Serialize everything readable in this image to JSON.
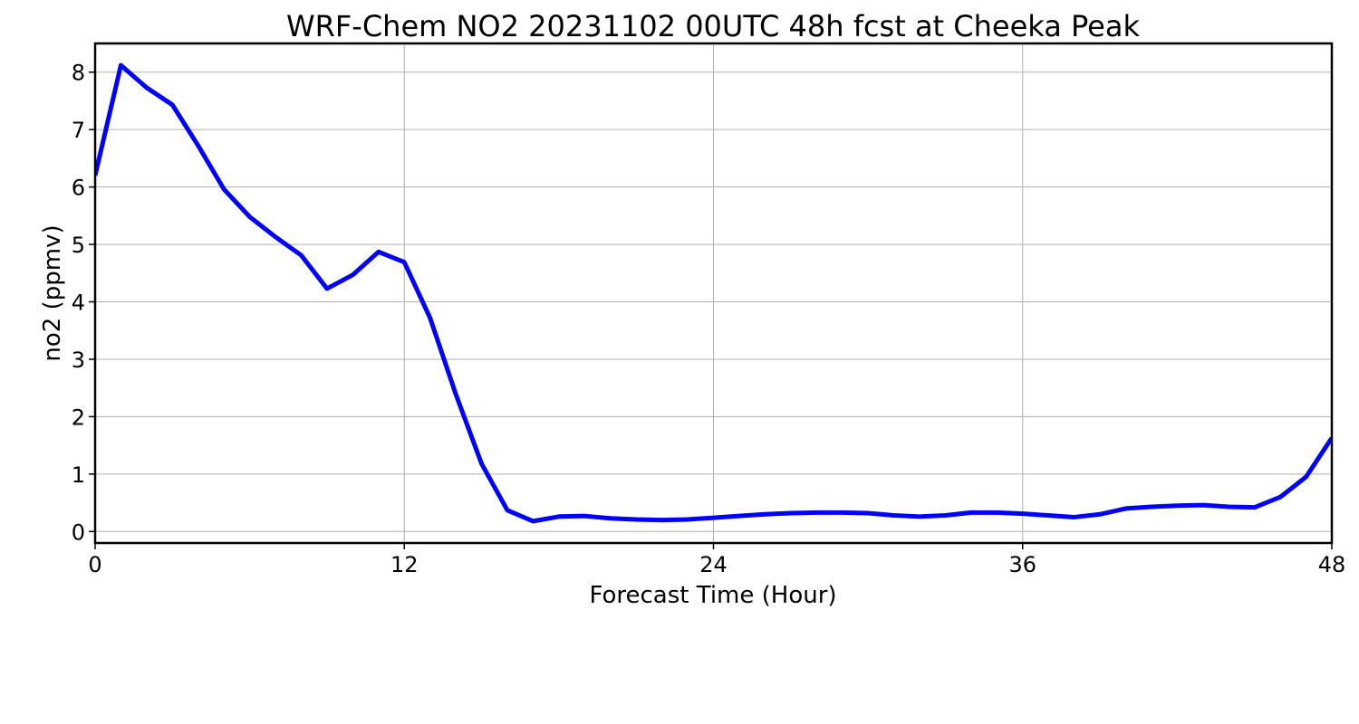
{
  "chart_data": {
    "type": "line",
    "title": "WRF-Chem NO2  20231102 00UTC 48h fcst at Cheeka Peak",
    "xlabel": "Forecast Time (Hour)",
    "ylabel": "no2  (ppmv)",
    "xlim": [
      0,
      48
    ],
    "ylim": [
      -0.2,
      8.5
    ],
    "xticks": [
      0,
      12,
      24,
      36,
      48
    ],
    "yticks": [
      0,
      1,
      2,
      3,
      4,
      5,
      6,
      7,
      8
    ],
    "grid": true,
    "series": [
      {
        "color": "#0000ff",
        "x": [
          0,
          1,
          2,
          3,
          4,
          5,
          6,
          7,
          8,
          9,
          10,
          11,
          12,
          13,
          14,
          15,
          16,
          17,
          18,
          19,
          20,
          21,
          22,
          23,
          24,
          25,
          26,
          27,
          28,
          29,
          30,
          31,
          32,
          33,
          34,
          35,
          36,
          37,
          38,
          39,
          40,
          41,
          42,
          43,
          44,
          45,
          46,
          47,
          48
        ],
        "y": [
          6.2,
          8.12,
          7.73,
          7.43,
          6.72,
          5.96,
          5.48,
          5.13,
          4.81,
          4.23,
          4.47,
          4.87,
          4.69,
          3.72,
          2.39,
          1.18,
          0.37,
          0.18,
          0.26,
          0.27,
          0.23,
          0.21,
          0.2,
          0.21,
          0.24,
          0.27,
          0.3,
          0.32,
          0.33,
          0.33,
          0.32,
          0.28,
          0.26,
          0.28,
          0.33,
          0.33,
          0.31,
          0.28,
          0.25,
          0.3,
          0.4,
          0.43,
          0.45,
          0.46,
          0.43,
          0.42,
          0.6,
          0.95,
          1.63
        ]
      }
    ]
  }
}
